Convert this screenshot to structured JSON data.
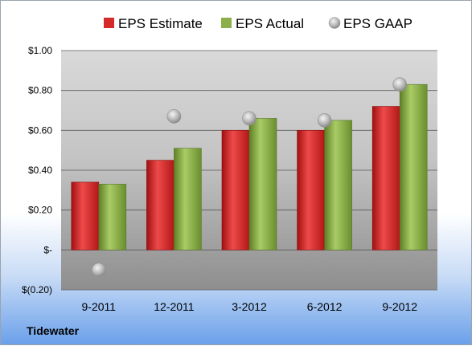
{
  "chart_data": {
    "type": "bar",
    "company": "Tidewater",
    "categories": [
      "9-2011",
      "12-2011",
      "3-2012",
      "6-2012",
      "9-2012"
    ],
    "series": [
      {
        "name": "EPS Estimate",
        "type": "bar",
        "color": "#d42a2a",
        "values": [
          0.34,
          0.45,
          0.6,
          0.6,
          0.72
        ]
      },
      {
        "name": "EPS Actual",
        "type": "bar",
        "color": "#8bb04a",
        "values": [
          0.33,
          0.51,
          0.66,
          0.65,
          0.83
        ]
      },
      {
        "name": "EPS GAAP",
        "type": "scatter",
        "color": "#a8a8a8",
        "values": [
          -0.1,
          0.67,
          0.66,
          0.65,
          0.83
        ]
      }
    ],
    "ylim": [
      -0.2,
      1.0
    ],
    "yticks": [
      -0.2,
      0.0,
      0.2,
      0.4,
      0.6,
      0.8,
      1.0
    ],
    "ytick_labels": [
      "$(0.20)",
      "$-",
      "$0.20",
      "$0.40",
      "$0.60",
      "$0.80",
      "$1.00"
    ],
    "grid": true,
    "legend_position": "top"
  }
}
